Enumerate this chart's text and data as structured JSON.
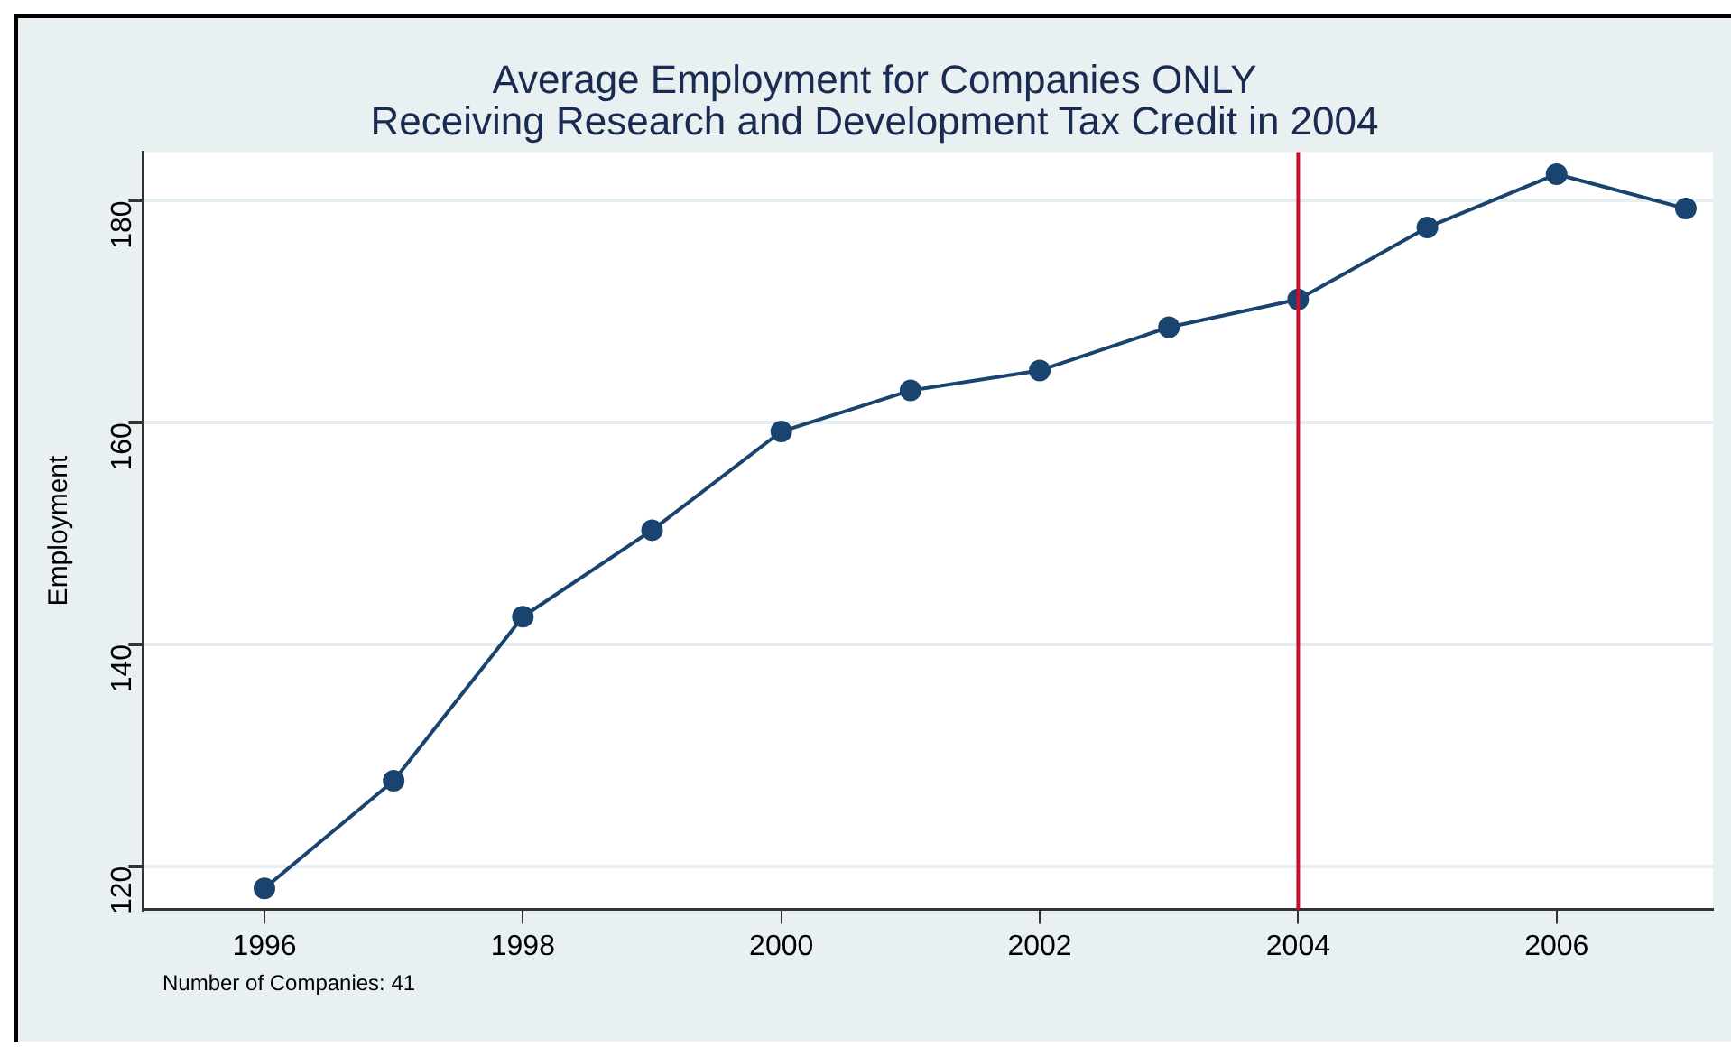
{
  "chart_data": {
    "type": "line",
    "title": "Average Employment for Companies ONLY\nReceiving Research and Development Tax Credit in 2004",
    "ylabel": "Employment",
    "x": [
      1996,
      1997,
      1998,
      1999,
      2000,
      2001,
      2002,
      2003,
      2004,
      2005,
      2006,
      2007
    ],
    "series": [
      {
        "color": "#1a4470",
        "values": [
          118,
          127.7,
          142.5,
          150.3,
          159.2,
          162.9,
          164.7,
          168.6,
          171.1,
          177.6,
          182.4,
          179.3
        ]
      }
    ],
    "xlim": [
      1995.06,
      2007.21
    ],
    "xticks": [
      1996,
      1998,
      2000,
      2002,
      2004,
      2006
    ],
    "ylim": [
      116.1,
      184.4
    ],
    "yticks": [
      120,
      140,
      160,
      180
    ],
    "grid": "y",
    "marker": "circle",
    "line_style": "solid",
    "legend": false,
    "ref_lines": [
      {
        "axis": "x",
        "value": 2004,
        "color": "#c8102e"
      }
    ],
    "annotations": [
      "Number of Companies: 41"
    ]
  }
}
